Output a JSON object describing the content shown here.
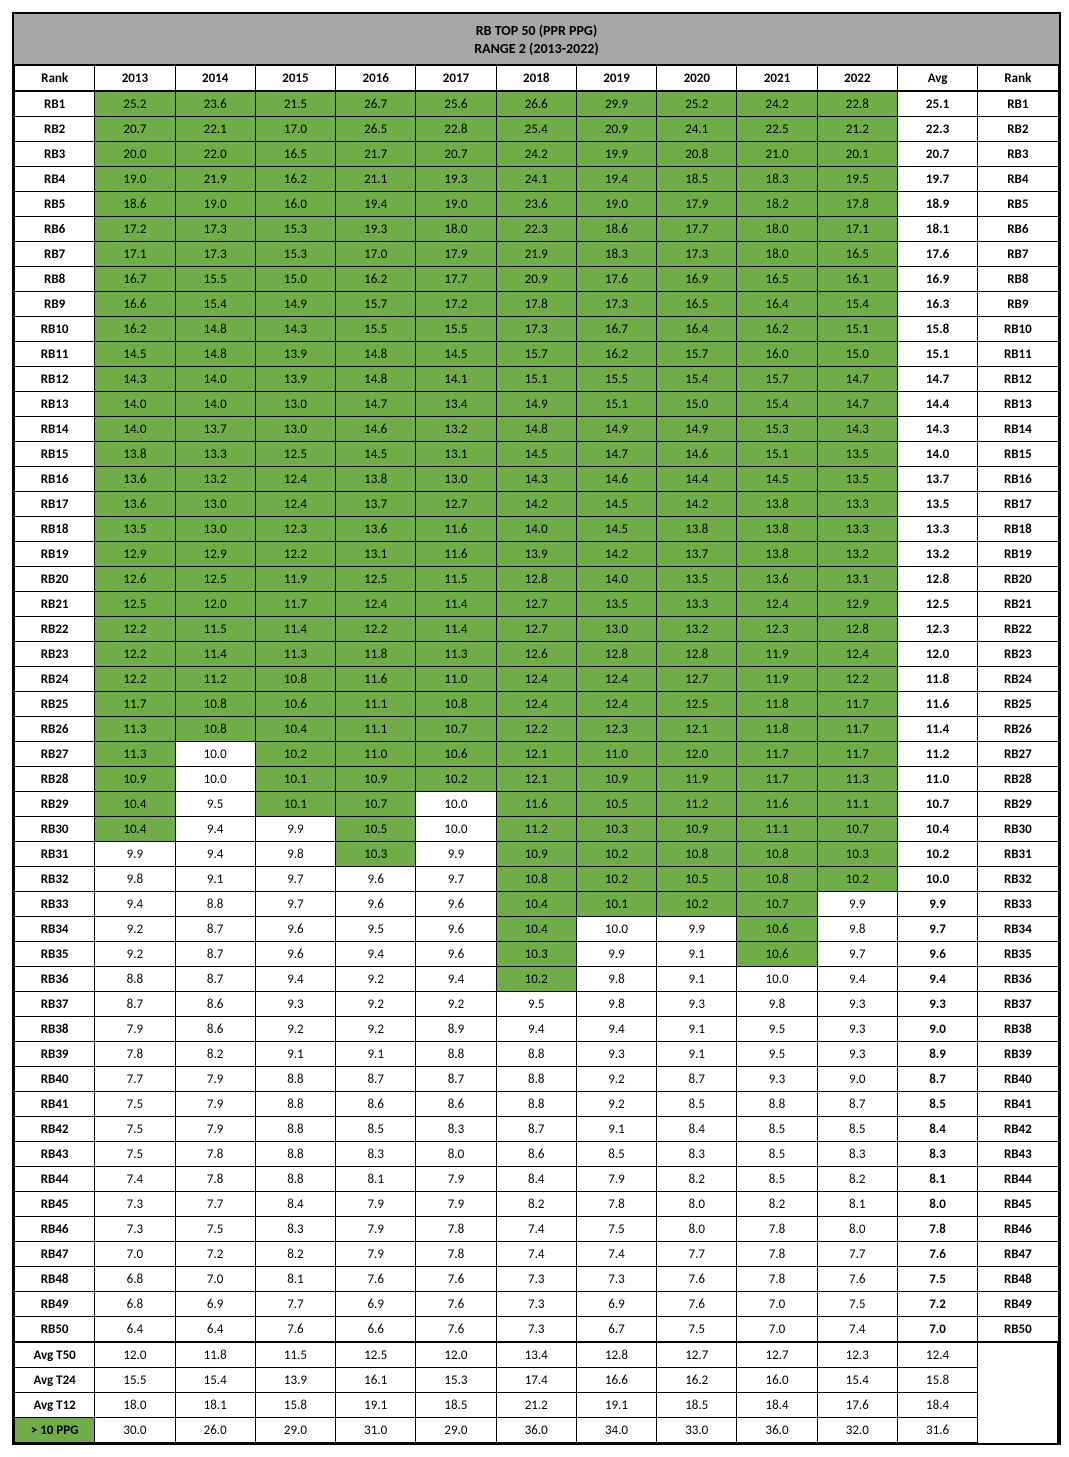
{
  "title1": "RB TOP 50 (PPR PPG)",
  "title2": "RANGE 2 (2013-2022)",
  "headers": [
    "Rank",
    "2013",
    "2014",
    "2015",
    "2016",
    "2017",
    "2018",
    "2019",
    "2020",
    "2021",
    "2022",
    "Avg",
    "Rank"
  ],
  "threshold": 10.0,
  "rows": [
    {
      "rank": "RB1",
      "vals": [
        25.2,
        23.6,
        21.5,
        26.7,
        25.6,
        26.6,
        29.9,
        25.2,
        24.2,
        22.8
      ],
      "avg": 25.1
    },
    {
      "rank": "RB2",
      "vals": [
        20.7,
        22.1,
        17.0,
        26.5,
        22.8,
        25.4,
        20.9,
        24.1,
        22.5,
        21.2
      ],
      "avg": 22.3
    },
    {
      "rank": "RB3",
      "vals": [
        20.0,
        22.0,
        16.5,
        21.7,
        20.7,
        24.2,
        19.9,
        20.8,
        21.0,
        20.1
      ],
      "avg": 20.7
    },
    {
      "rank": "RB4",
      "vals": [
        19.0,
        21.9,
        16.2,
        21.1,
        19.3,
        24.1,
        19.4,
        18.5,
        18.3,
        19.5
      ],
      "avg": 19.7
    },
    {
      "rank": "RB5",
      "vals": [
        18.6,
        19.0,
        16.0,
        19.4,
        19.0,
        23.6,
        19.0,
        17.9,
        18.2,
        17.8
      ],
      "avg": 18.9
    },
    {
      "rank": "RB6",
      "vals": [
        17.2,
        17.3,
        15.3,
        19.3,
        18.0,
        22.3,
        18.6,
        17.7,
        18.0,
        17.1
      ],
      "avg": 18.1
    },
    {
      "rank": "RB7",
      "vals": [
        17.1,
        17.3,
        15.3,
        17.0,
        17.9,
        21.9,
        18.3,
        17.3,
        18.0,
        16.5
      ],
      "avg": 17.6
    },
    {
      "rank": "RB8",
      "vals": [
        16.7,
        15.5,
        15.0,
        16.2,
        17.7,
        20.9,
        17.6,
        16.9,
        16.5,
        16.1
      ],
      "avg": 16.9
    },
    {
      "rank": "RB9",
      "vals": [
        16.6,
        15.4,
        14.9,
        15.7,
        17.2,
        17.8,
        17.3,
        16.5,
        16.4,
        15.4
      ],
      "avg": 16.3
    },
    {
      "rank": "RB10",
      "vals": [
        16.2,
        14.8,
        14.3,
        15.5,
        15.5,
        17.3,
        16.7,
        16.4,
        16.2,
        15.1
      ],
      "avg": 15.8
    },
    {
      "rank": "RB11",
      "vals": [
        14.5,
        14.8,
        13.9,
        14.8,
        14.5,
        15.7,
        16.2,
        15.7,
        16.0,
        15.0
      ],
      "avg": 15.1
    },
    {
      "rank": "RB12",
      "vals": [
        14.3,
        14.0,
        13.9,
        14.8,
        14.1,
        15.1,
        15.5,
        15.4,
        15.7,
        14.7
      ],
      "avg": 14.7
    },
    {
      "rank": "RB13",
      "vals": [
        14.0,
        14.0,
        13.0,
        14.7,
        13.4,
        14.9,
        15.1,
        15.0,
        15.4,
        14.7
      ],
      "avg": 14.4
    },
    {
      "rank": "RB14",
      "vals": [
        14.0,
        13.7,
        13.0,
        14.6,
        13.2,
        14.8,
        14.9,
        14.9,
        15.3,
        14.3
      ],
      "avg": 14.3
    },
    {
      "rank": "RB15",
      "vals": [
        13.8,
        13.3,
        12.5,
        14.5,
        13.1,
        14.5,
        14.7,
        14.6,
        15.1,
        13.5
      ],
      "avg": 14.0
    },
    {
      "rank": "RB16",
      "vals": [
        13.6,
        13.2,
        12.4,
        13.8,
        13.0,
        14.3,
        14.6,
        14.4,
        14.5,
        13.5
      ],
      "avg": 13.7
    },
    {
      "rank": "RB17",
      "vals": [
        13.6,
        13.0,
        12.4,
        13.7,
        12.7,
        14.2,
        14.5,
        14.2,
        13.8,
        13.3
      ],
      "avg": 13.5
    },
    {
      "rank": "RB18",
      "vals": [
        13.5,
        13.0,
        12.3,
        13.6,
        11.6,
        14.0,
        14.5,
        13.8,
        13.8,
        13.3
      ],
      "avg": 13.3
    },
    {
      "rank": "RB19",
      "vals": [
        12.9,
        12.9,
        12.2,
        13.1,
        11.6,
        13.9,
        14.2,
        13.7,
        13.8,
        13.2
      ],
      "avg": 13.2
    },
    {
      "rank": "RB20",
      "vals": [
        12.6,
        12.5,
        11.9,
        12.5,
        11.5,
        12.8,
        14.0,
        13.5,
        13.6,
        13.1
      ],
      "avg": 12.8
    },
    {
      "rank": "RB21",
      "vals": [
        12.5,
        12.0,
        11.7,
        12.4,
        11.4,
        12.7,
        13.5,
        13.3,
        12.4,
        12.9
      ],
      "avg": 12.5
    },
    {
      "rank": "RB22",
      "vals": [
        12.2,
        11.5,
        11.4,
        12.2,
        11.4,
        12.7,
        13.0,
        13.2,
        12.3,
        12.8
      ],
      "avg": 12.3
    },
    {
      "rank": "RB23",
      "vals": [
        12.2,
        11.4,
        11.3,
        11.8,
        11.3,
        12.6,
        12.8,
        12.8,
        11.9,
        12.4
      ],
      "avg": 12.0
    },
    {
      "rank": "RB24",
      "vals": [
        12.2,
        11.2,
        10.8,
        11.6,
        11.0,
        12.4,
        12.4,
        12.7,
        11.9,
        12.2
      ],
      "avg": 11.8
    },
    {
      "rank": "RB25",
      "vals": [
        11.7,
        10.8,
        10.6,
        11.1,
        10.8,
        12.4,
        12.4,
        12.5,
        11.8,
        11.7
      ],
      "avg": 11.6
    },
    {
      "rank": "RB26",
      "vals": [
        11.3,
        10.8,
        10.4,
        11.1,
        10.7,
        12.2,
        12.3,
        12.1,
        11.8,
        11.7
      ],
      "avg": 11.4
    },
    {
      "rank": "RB27",
      "vals": [
        11.3,
        10.0,
        10.2,
        11.0,
        10.6,
        12.1,
        11.0,
        12.0,
        11.7,
        11.7
      ],
      "avg": 11.2
    },
    {
      "rank": "RB28",
      "vals": [
        10.9,
        10.0,
        10.1,
        10.9,
        10.2,
        12.1,
        10.9,
        11.9,
        11.7,
        11.3
      ],
      "avg": 11.0
    },
    {
      "rank": "RB29",
      "vals": [
        10.4,
        9.5,
        10.1,
        10.7,
        10.0,
        11.6,
        10.5,
        11.2,
        11.6,
        11.1
      ],
      "avg": 10.7
    },
    {
      "rank": "RB30",
      "vals": [
        10.4,
        9.4,
        9.9,
        10.5,
        10.0,
        11.2,
        10.3,
        10.9,
        11.1,
        10.7
      ],
      "avg": 10.4
    },
    {
      "rank": "RB31",
      "vals": [
        9.9,
        9.4,
        9.8,
        10.3,
        9.9,
        10.9,
        10.2,
        10.8,
        10.8,
        10.3
      ],
      "avg": 10.2
    },
    {
      "rank": "RB32",
      "vals": [
        9.8,
        9.1,
        9.7,
        9.6,
        9.7,
        10.8,
        10.2,
        10.5,
        10.8,
        10.2
      ],
      "avg": 10.0
    },
    {
      "rank": "RB33",
      "vals": [
        9.4,
        8.8,
        9.7,
        9.6,
        9.6,
        10.4,
        10.1,
        10.2,
        10.7,
        9.9
      ],
      "avg": 9.9
    },
    {
      "rank": "RB34",
      "vals": [
        9.2,
        8.7,
        9.6,
        9.5,
        9.6,
        10.4,
        10.0,
        9.9,
        10.6,
        9.8
      ],
      "avg": 9.7
    },
    {
      "rank": "RB35",
      "vals": [
        9.2,
        8.7,
        9.6,
        9.4,
        9.6,
        10.3,
        9.9,
        9.1,
        10.6,
        9.7
      ],
      "avg": 9.6
    },
    {
      "rank": "RB36",
      "vals": [
        8.8,
        8.7,
        9.4,
        9.2,
        9.4,
        10.2,
        9.8,
        9.1,
        10.0,
        9.4
      ],
      "avg": 9.4
    },
    {
      "rank": "RB37",
      "vals": [
        8.7,
        8.6,
        9.3,
        9.2,
        9.2,
        9.5,
        9.8,
        9.3,
        9.8,
        9.3
      ],
      "avg": 9.3
    },
    {
      "rank": "RB38",
      "vals": [
        7.9,
        8.6,
        9.2,
        9.2,
        8.9,
        9.4,
        9.4,
        9.1,
        9.5,
        9.3
      ],
      "avg": 9.0
    },
    {
      "rank": "RB39",
      "vals": [
        7.8,
        8.2,
        9.1,
        9.1,
        8.8,
        8.8,
        9.3,
        9.1,
        9.5,
        9.3
      ],
      "avg": 8.9
    },
    {
      "rank": "RB40",
      "vals": [
        7.7,
        7.9,
        8.8,
        8.7,
        8.7,
        8.8,
        9.2,
        8.7,
        9.3,
        9.0
      ],
      "avg": 8.7
    },
    {
      "rank": "RB41",
      "vals": [
        7.5,
        7.9,
        8.8,
        8.6,
        8.6,
        8.8,
        9.2,
        8.5,
        8.8,
        8.7
      ],
      "avg": 8.5
    },
    {
      "rank": "RB42",
      "vals": [
        7.5,
        7.9,
        8.8,
        8.5,
        8.3,
        8.7,
        9.1,
        8.4,
        8.5,
        8.5
      ],
      "avg": 8.4
    },
    {
      "rank": "RB43",
      "vals": [
        7.5,
        7.8,
        8.8,
        8.3,
        8.0,
        8.6,
        8.5,
        8.3,
        8.5,
        8.3
      ],
      "avg": 8.3
    },
    {
      "rank": "RB44",
      "vals": [
        7.4,
        7.8,
        8.8,
        8.1,
        7.9,
        8.4,
        7.9,
        8.2,
        8.5,
        8.2
      ],
      "avg": 8.1
    },
    {
      "rank": "RB45",
      "vals": [
        7.3,
        7.7,
        8.4,
        7.9,
        7.9,
        8.2,
        7.8,
        8.0,
        8.2,
        8.1
      ],
      "avg": 8.0
    },
    {
      "rank": "RB46",
      "vals": [
        7.3,
        7.5,
        8.3,
        7.9,
        7.8,
        7.4,
        7.5,
        8.0,
        7.8,
        8.0
      ],
      "avg": 7.8
    },
    {
      "rank": "RB47",
      "vals": [
        7.0,
        7.2,
        8.2,
        7.9,
        7.8,
        7.4,
        7.4,
        7.7,
        7.8,
        7.7
      ],
      "avg": 7.6
    },
    {
      "rank": "RB48",
      "vals": [
        6.8,
        7.0,
        8.1,
        7.6,
        7.6,
        7.3,
        7.3,
        7.6,
        7.8,
        7.6
      ],
      "avg": 7.5
    },
    {
      "rank": "RB49",
      "vals": [
        6.8,
        6.9,
        7.7,
        6.9,
        7.6,
        7.3,
        6.9,
        7.6,
        7.0,
        7.5
      ],
      "avg": 7.2
    },
    {
      "rank": "RB50",
      "vals": [
        6.4,
        6.4,
        7.6,
        6.6,
        7.6,
        7.3,
        6.7,
        7.5,
        7.0,
        7.4
      ],
      "avg": 7.0
    }
  ],
  "summary": [
    {
      "label": "Avg T50",
      "vals": [
        12.0,
        11.8,
        11.5,
        12.5,
        12.0,
        13.4,
        12.8,
        12.7,
        12.7,
        12.3
      ],
      "avg": 12.4
    },
    {
      "label": "Avg T24",
      "vals": [
        15.5,
        15.4,
        13.9,
        16.1,
        15.3,
        17.4,
        16.6,
        16.2,
        16.0,
        15.4
      ],
      "avg": 15.8
    },
    {
      "label": "Avg T12",
      "vals": [
        18.0,
        18.1,
        15.8,
        19.1,
        18.5,
        21.2,
        19.1,
        18.5,
        18.4,
        17.6
      ],
      "avg": 18.4
    }
  ],
  "ppg": {
    "label": "> 10 PPG",
    "vals": [
      30.0,
      26.0,
      29.0,
      31.0,
      29.0,
      36.0,
      34.0,
      33.0,
      36.0,
      32.0
    ],
    "avg": 31.6
  }
}
